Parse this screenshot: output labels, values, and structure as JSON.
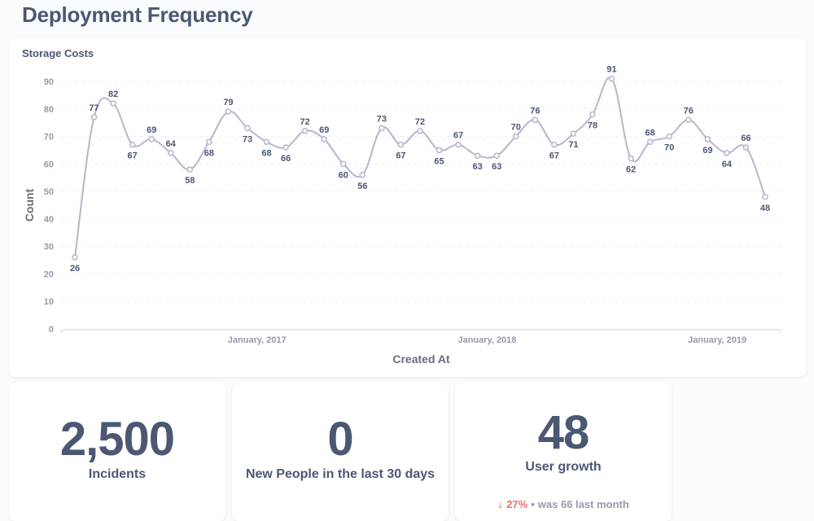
{
  "dashboard": {
    "title": "Deployment Frequency"
  },
  "chart_card": {
    "title": "Storage Costs"
  },
  "chart_data": {
    "type": "line",
    "title": "Storage Costs",
    "xlabel": "Created At",
    "ylabel": "Count",
    "ylim": [
      0,
      90
    ],
    "yticks": [
      0,
      10,
      20,
      30,
      40,
      50,
      60,
      70,
      80,
      90
    ],
    "xtick_labels": [
      "January, 2017",
      "January, 2018",
      "January, 2019"
    ],
    "grid": true,
    "series": [
      {
        "values": [
          26,
          77,
          82,
          67,
          69,
          64,
          58,
          68,
          79,
          73,
          68,
          66,
          72,
          69,
          60,
          56,
          73,
          67,
          72,
          65,
          67,
          63,
          63,
          70,
          76,
          67,
          71,
          78,
          91,
          62,
          68,
          70,
          76,
          69,
          64,
          66,
          48
        ]
      }
    ],
    "color": "#b8b4cf"
  },
  "scalars": [
    {
      "value": "2,500",
      "label": "Incidents"
    },
    {
      "value": "0",
      "label": "New People in the last 30 days"
    },
    {
      "value": "48",
      "label": "User growth",
      "comparison": {
        "arrow": "↓",
        "percent": "27%",
        "dot": "•",
        "text": "was 66  last month"
      }
    }
  ]
}
